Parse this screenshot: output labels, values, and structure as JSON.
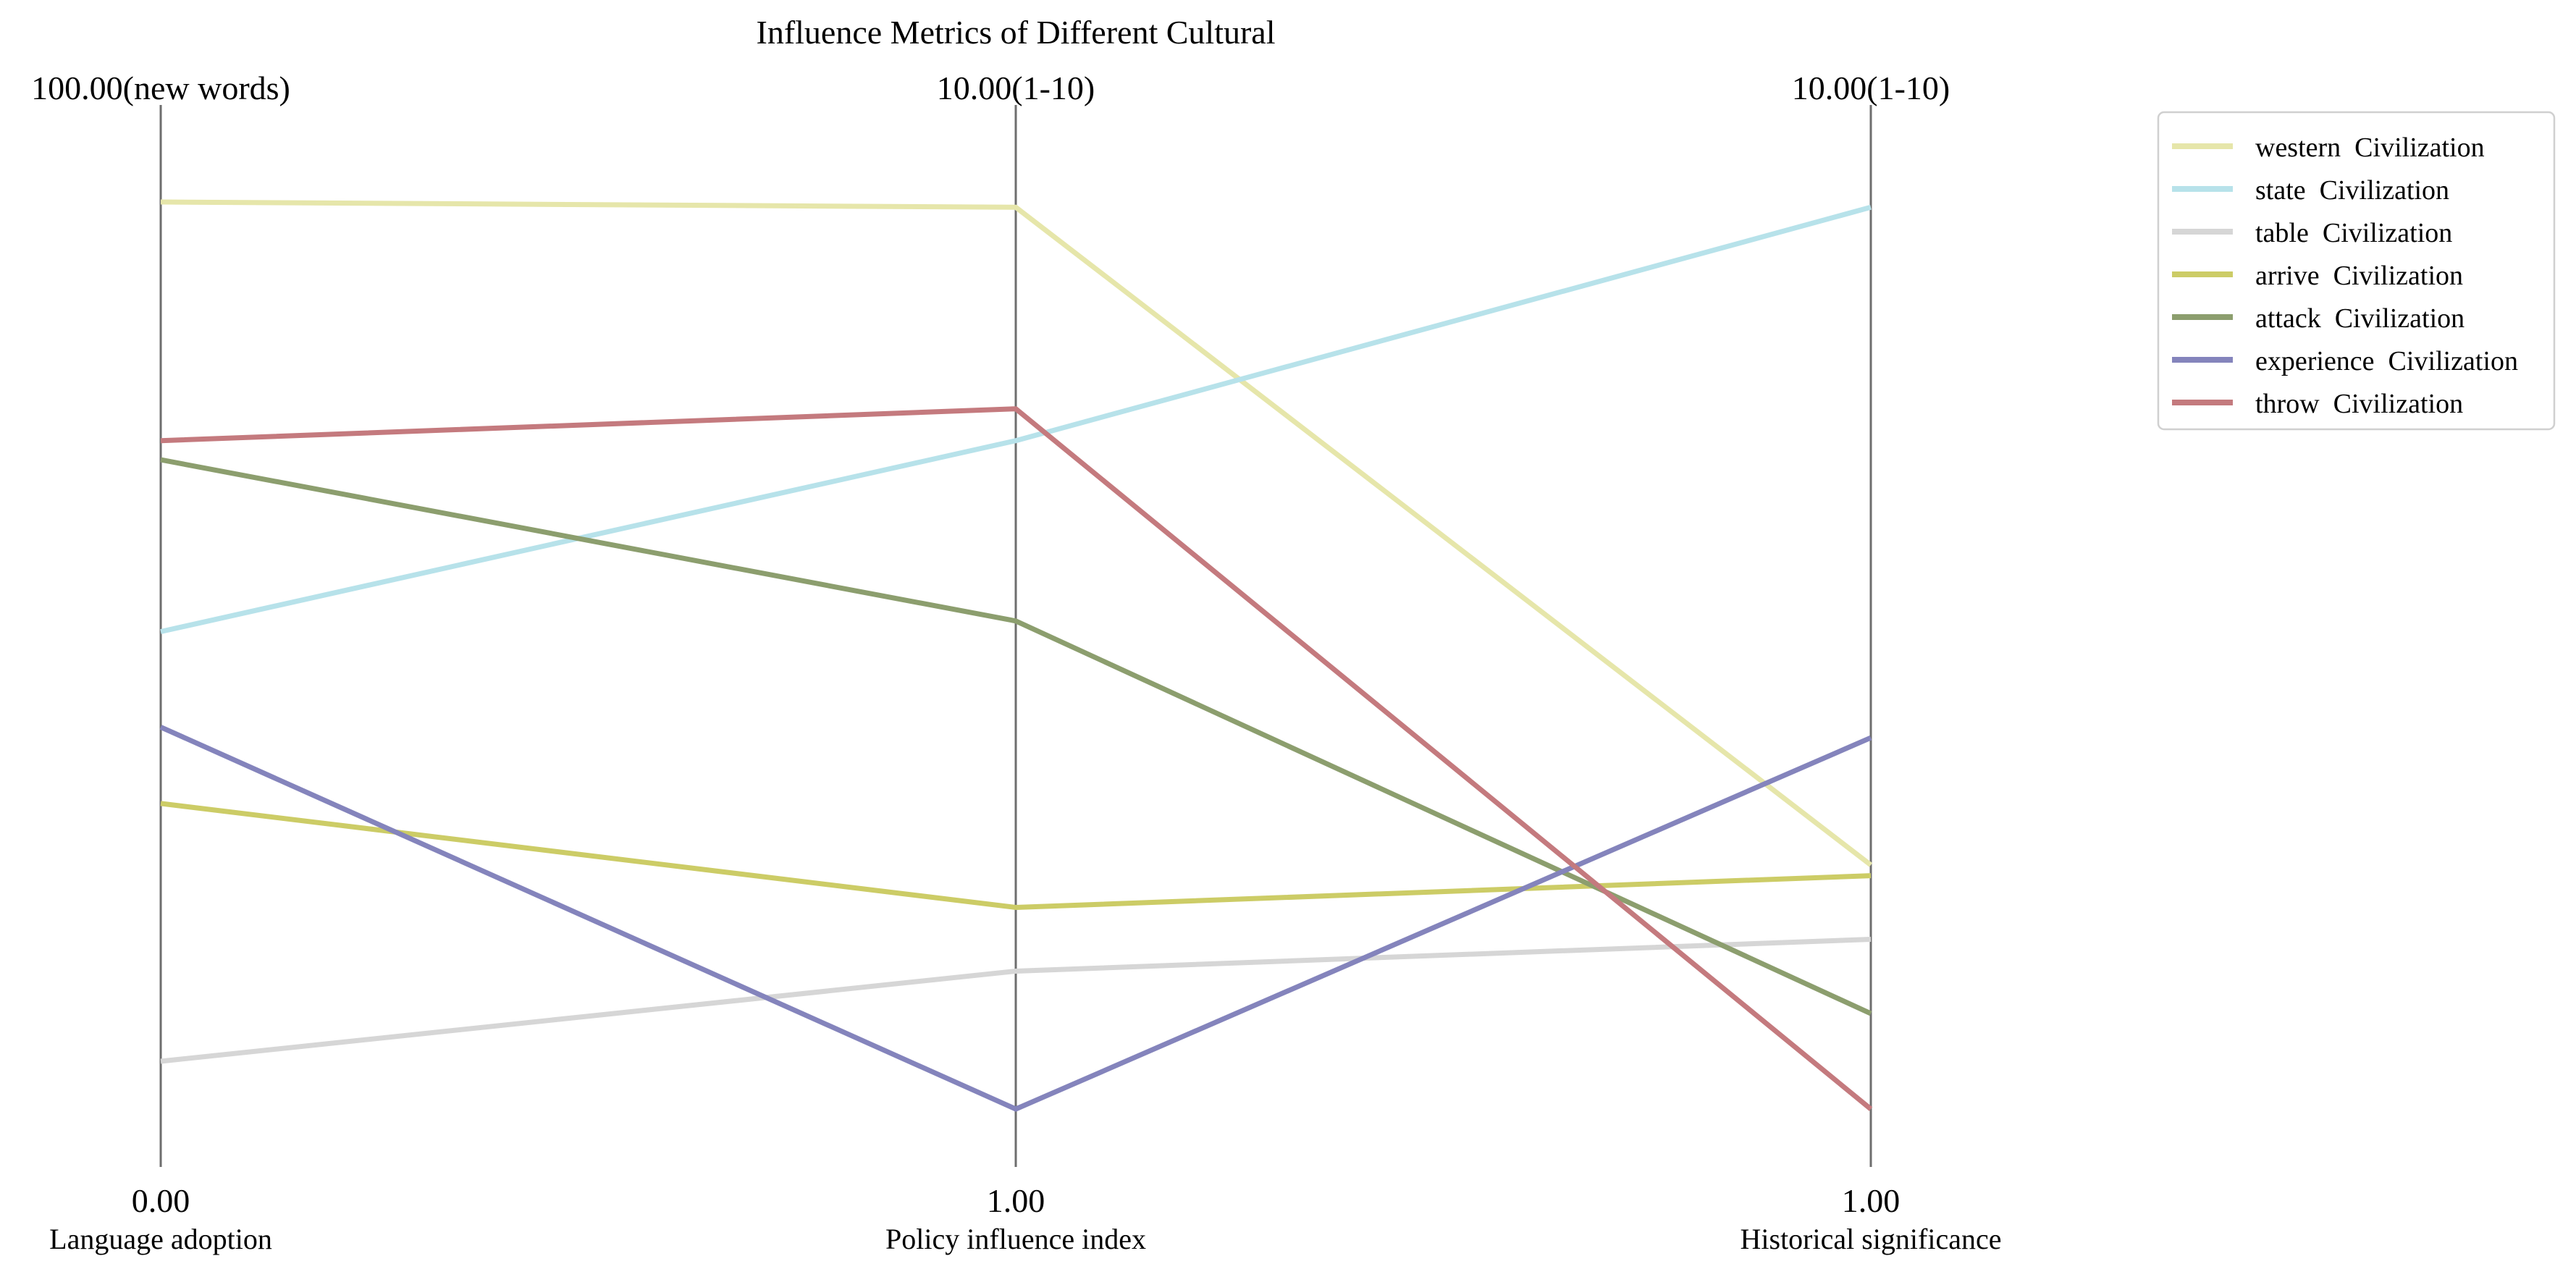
{
  "chart_data": {
    "type": "parallel-coordinates",
    "title": "Influence Metrics of Different Cultural",
    "axes": [
      {
        "label": "Language adoption",
        "min": 0,
        "max": 100,
        "min_label": "0.00",
        "max_label": "100.00(new words)"
      },
      {
        "label": "Policy influence index",
        "min": 1,
        "max": 10,
        "min_label": "1.00",
        "max_label": "10.00(1-10)"
      },
      {
        "label": "Historical significance",
        "min": 1,
        "max": 10,
        "min_label": "1.00",
        "max_label": "10.00(1-10)"
      }
    ],
    "series": [
      {
        "name": "western  Civilization",
        "color": "#e6e6aa",
        "values": [
          95,
          9.5,
          3.3
        ]
      },
      {
        "name": "state  Civilization",
        "color": "#b7e2ea",
        "values": [
          50,
          7.3,
          9.5
        ]
      },
      {
        "name": "table  Civilization",
        "color": "#d6d6d6",
        "values": [
          5,
          2.3,
          2.6
        ]
      },
      {
        "name": "arrive  Civilization",
        "color": "#cccc66",
        "values": [
          32,
          2.9,
          3.2
        ]
      },
      {
        "name": "attack  Civilization",
        "color": "#8c9e6e",
        "values": [
          68,
          5.6,
          1.9
        ]
      },
      {
        "name": "experience  Civilization",
        "color": "#8484bc",
        "values": [
          40,
          1.0,
          4.5
        ]
      },
      {
        "name": "throw  Civilization",
        "color": "#c47a7e",
        "values": [
          70,
          7.6,
          1.0
        ]
      }
    ],
    "legend_position": "top-right",
    "grid": false
  }
}
